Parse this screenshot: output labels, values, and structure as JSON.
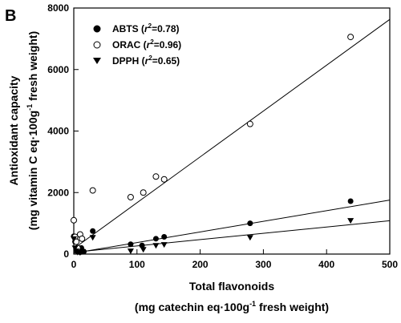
{
  "chart_data": {
    "type": "scatter",
    "panel_label": "B",
    "xlabel_line1": "Total flavonoids",
    "xlabel_line2_pre": "(mg catechin eq·100g",
    "xlabel_line2_sup": "-1",
    "xlabel_line2_post": " fresh weight)",
    "ylabel_line1": "Antioxidant capacity",
    "ylabel_line2_pre": "(mg vitamin C eq·100g",
    "ylabel_line2_sup": "-1",
    "ylabel_line2_post": " fresh weight)",
    "xlim": [
      0,
      500
    ],
    "ylim": [
      0,
      8000
    ],
    "xticks": [
      0,
      100,
      200,
      300,
      400,
      500
    ],
    "yticks": [
      0,
      2000,
      4000,
      6000,
      8000
    ],
    "grid": false,
    "legend_position": "top-left",
    "series": [
      {
        "name": "ABTS",
        "r2": "0.78",
        "legend_pre": "ABTS (",
        "legend_r": "r",
        "legend_sup": "2",
        "legend_post": "=0.78)",
        "marker": "filled-circle",
        "x": [
          0,
          2,
          4,
          6,
          8,
          10,
          12,
          14,
          16,
          30,
          90,
          108,
          130,
          143,
          279,
          438
        ],
        "y": [
          580,
          400,
          150,
          80,
          120,
          60,
          200,
          100,
          80,
          750,
          320,
          280,
          500,
          560,
          1000,
          1720
        ],
        "fit": {
          "slope": 3.45,
          "intercept": 30
        }
      },
      {
        "name": "ORAC",
        "r2": "0.96",
        "legend_pre": "ORAC (",
        "legend_r": "r",
        "legend_sup": "2",
        "legend_post": "=0.96)",
        "marker": "open-circle",
        "x": [
          0,
          2,
          4,
          6,
          10,
          13,
          30,
          90,
          110,
          130,
          143,
          279,
          438
        ],
        "y": [
          1100,
          560,
          400,
          200,
          640,
          500,
          2070,
          1850,
          2000,
          2520,
          2430,
          4230,
          7060
        ],
        "fit": {
          "slope": 14.9,
          "intercept": 180
        }
      },
      {
        "name": "DPPH",
        "r2": "0.65",
        "legend_pre": "DPPH (",
        "legend_r": "r",
        "legend_sup": "2",
        "legend_post": "=0.65)",
        "marker": "filled-triangle-down",
        "x": [
          0,
          2,
          4,
          6,
          10,
          14,
          30,
          90,
          110,
          130,
          143,
          279,
          438
        ],
        "y": [
          500,
          200,
          100,
          60,
          50,
          80,
          540,
          100,
          150,
          280,
          310,
          540,
          1090
        ],
        "fit": {
          "slope": 2.05,
          "intercept": 60
        }
      }
    ]
  }
}
